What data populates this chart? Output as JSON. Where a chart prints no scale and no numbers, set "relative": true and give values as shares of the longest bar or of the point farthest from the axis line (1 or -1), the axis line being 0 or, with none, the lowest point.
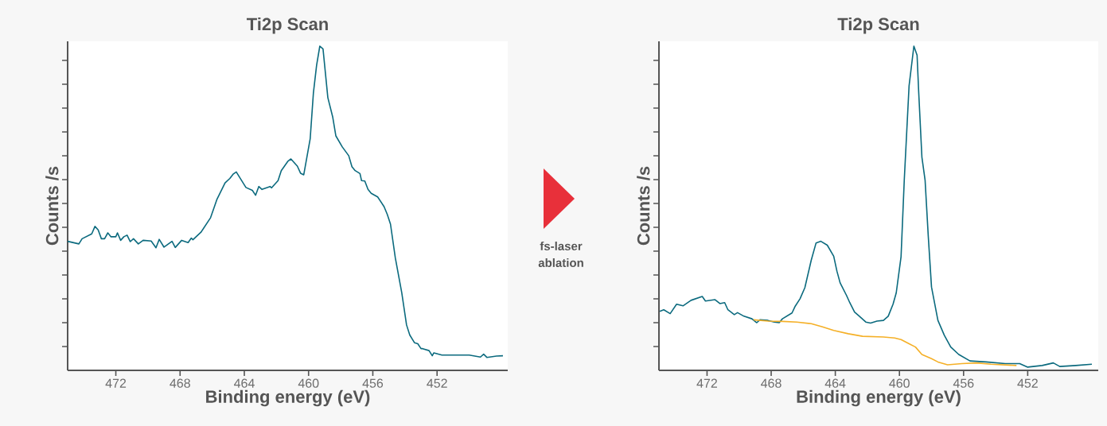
{
  "chart_data": [
    {
      "type": "line",
      "title": "Ti2p Scan",
      "xlabel": "Binding energy (eV)",
      "ylabel": "Counts /s",
      "relative": true,
      "tick_labels": "x",
      "xlim": [
        475,
        447.6
      ],
      "xticks": [
        472,
        468,
        464,
        460,
        456,
        452
      ],
      "series": [
        {
          "color": "#0b6a7e",
          "x": [
            475.0,
            474.3,
            474.1,
            473.5,
            473.3,
            473.1,
            472.9,
            472.7,
            472.5,
            472.3,
            472.0,
            471.9,
            471.7,
            471.5,
            471.3,
            471.1,
            470.9,
            470.6,
            470.3,
            469.8,
            469.5,
            469.3,
            469.0,
            468.5,
            468.3,
            467.9,
            467.5,
            467.3,
            467.2,
            466.7,
            466.1,
            465.7,
            465.2,
            464.9,
            464.7,
            464.5,
            463.9,
            463.5,
            463.3,
            463.1,
            462.9,
            462.4,
            462.3,
            461.9,
            461.7,
            461.3,
            461.1,
            460.7,
            460.5,
            460.3,
            459.9,
            459.7,
            459.5,
            459.3,
            459.1,
            458.8,
            458.5,
            458.3,
            457.9,
            457.5,
            457.3,
            457.1,
            456.8,
            456.7,
            456.5,
            456.3,
            456.1,
            455.7,
            455.3,
            455.1,
            454.9,
            454.6,
            454.2,
            453.9,
            453.7,
            453.4,
            453.2,
            453.0,
            452.9,
            452.5,
            452.3,
            452.2,
            451.7,
            451.2,
            450.7,
            450.0,
            449.3,
            449.1,
            448.9,
            448.3,
            447.9
          ],
          "values": [
            0.398,
            0.39,
            0.406,
            0.421,
            0.444,
            0.433,
            0.406,
            0.406,
            0.424,
            0.412,
            0.412,
            0.424,
            0.401,
            0.412,
            0.417,
            0.397,
            0.406,
            0.39,
            0.401,
            0.399,
            0.378,
            0.404,
            0.38,
            0.398,
            0.379,
            0.401,
            0.394,
            0.408,
            0.403,
            0.426,
            0.471,
            0.528,
            0.578,
            0.592,
            0.605,
            0.612,
            0.564,
            0.555,
            0.54,
            0.567,
            0.558,
            0.567,
            0.563,
            0.585,
            0.616,
            0.644,
            0.652,
            0.63,
            0.608,
            0.603,
            0.714,
            0.855,
            0.941,
            1.0,
            0.991,
            0.841,
            0.782,
            0.723,
            0.689,
            0.662,
            0.628,
            0.616,
            0.607,
            0.585,
            0.584,
            0.558,
            0.546,
            0.535,
            0.505,
            0.481,
            0.451,
            0.347,
            0.24,
            0.14,
            0.109,
            0.085,
            0.082,
            0.067,
            0.067,
            0.061,
            0.045,
            0.054,
            0.047,
            0.047,
            0.047,
            0.047,
            0.041,
            0.05,
            0.04,
            0.044,
            0.045
          ]
        }
      ]
    },
    {
      "type": "line",
      "title": "Ti2p Scan",
      "xlabel": "Binding energy (eV)",
      "ylabel": "Counts /s",
      "relative": true,
      "tick_labels": "x",
      "xlim": [
        475,
        447.6
      ],
      "xticks": [
        472,
        468,
        464,
        460,
        456,
        452
      ],
      "annotations": [
        "fs-laser ablation"
      ],
      "series": [
        {
          "color": "#0b6a7e",
          "x": [
            474.95,
            474.7,
            474.3,
            473.9,
            473.5,
            473.0,
            472.3,
            472.1,
            471.5,
            471.2,
            470.9,
            470.7,
            470.3,
            470.1,
            469.7,
            469.2,
            468.9,
            468.7,
            468.2,
            467.8,
            467.5,
            467.3,
            466.7,
            466.5,
            466.2,
            465.9,
            465.5,
            465.2,
            464.9,
            464.5,
            464.1,
            463.9,
            463.7,
            463.3,
            463.1,
            462.8,
            462.5,
            462.1,
            461.8,
            461.4,
            461.0,
            460.7,
            460.4,
            460.2,
            459.9,
            459.7,
            459.4,
            459.1,
            458.9,
            458.8,
            458.6,
            458.4,
            458.2,
            458.0,
            457.6,
            457.2,
            456.8,
            456.3,
            455.6,
            454.6,
            453.4,
            452.5,
            452.0,
            451.1,
            450.4,
            450.0,
            449.0,
            448.0
          ],
          "values": [
            0.182,
            0.187,
            0.175,
            0.204,
            0.199,
            0.216,
            0.228,
            0.214,
            0.218,
            0.206,
            0.209,
            0.187,
            0.172,
            0.178,
            0.167,
            0.159,
            0.147,
            0.156,
            0.154,
            0.149,
            0.147,
            0.159,
            0.177,
            0.198,
            0.221,
            0.255,
            0.34,
            0.393,
            0.398,
            0.386,
            0.352,
            0.306,
            0.27,
            0.231,
            0.209,
            0.18,
            0.167,
            0.149,
            0.146,
            0.152,
            0.154,
            0.167,
            0.204,
            0.239,
            0.35,
            0.586,
            0.877,
            1.0,
            0.972,
            0.859,
            0.658,
            0.586,
            0.412,
            0.257,
            0.154,
            0.108,
            0.072,
            0.049,
            0.029,
            0.026,
            0.021,
            0.021,
            0.01,
            0.015,
            0.023,
            0.012,
            0.015,
            0.019
          ]
        },
        {
          "color": "#f5b027",
          "x": [
            469.1,
            468.2,
            467.3,
            466.4,
            465.5,
            464.8,
            464.1,
            463.2,
            462.3,
            461.0,
            460.3,
            459.9,
            459.4,
            459.0,
            458.6,
            458.0,
            457.6,
            457.0,
            456.1,
            455.2,
            454.3,
            452.7
          ],
          "values": [
            0.156,
            0.152,
            0.151,
            0.149,
            0.144,
            0.134,
            0.123,
            0.113,
            0.105,
            0.103,
            0.1,
            0.095,
            0.082,
            0.072,
            0.049,
            0.036,
            0.026,
            0.017,
            0.021,
            0.023,
            0.019,
            0.015
          ]
        }
      ]
    }
  ]
}
